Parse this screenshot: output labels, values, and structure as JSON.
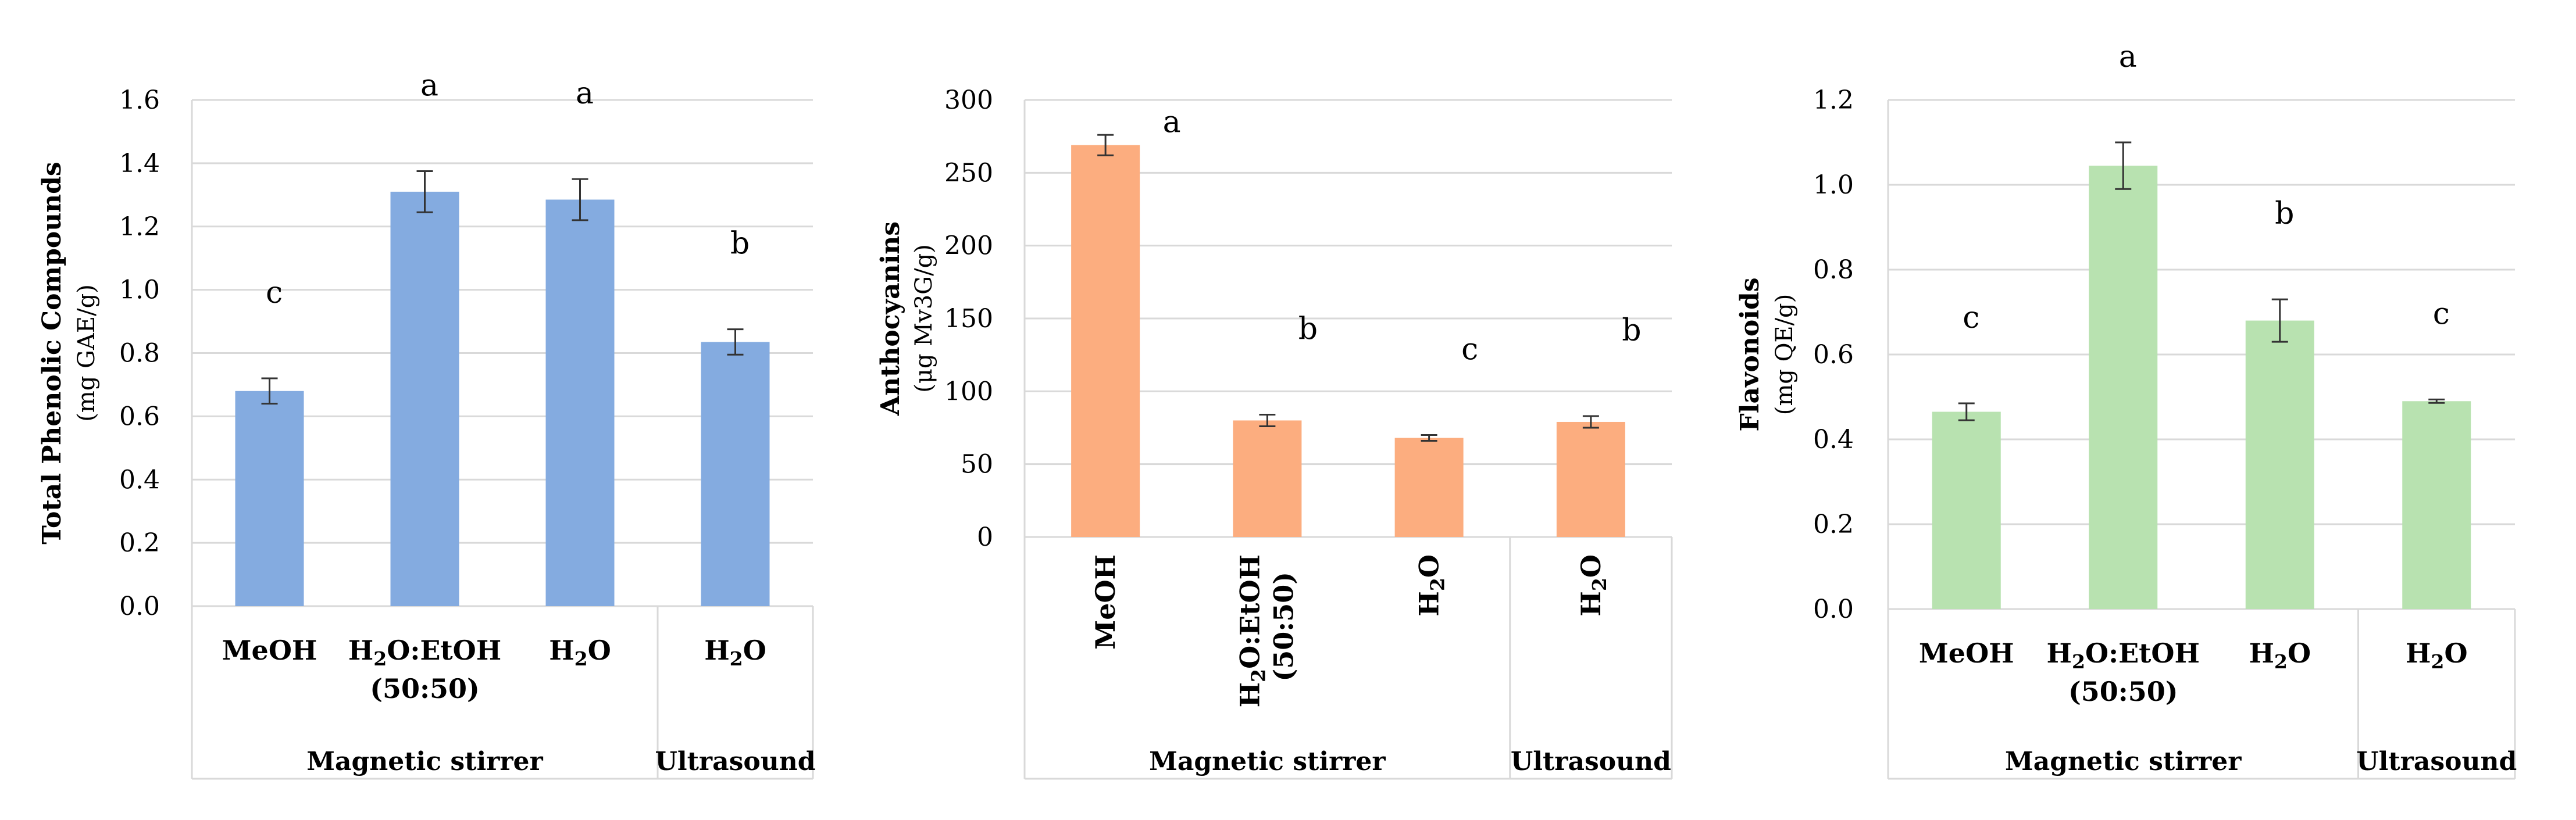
{
  "chart_data": [
    {
      "type": "bar",
      "ylabel": "Total Phenolic Compounds",
      "yunit": "(mg GAE/g)",
      "ylim": [
        0,
        1.6
      ],
      "yticks": [
        "0.0",
        "0.2",
        "0.4",
        "0.6",
        "0.8",
        "1.0",
        "1.2",
        "1.4",
        "1.6"
      ],
      "categories": [
        "MeOH",
        "H₂O:EtOH (50:50)",
        "H₂O",
        "H₂O"
      ],
      "values": [
        0.68,
        1.31,
        1.285,
        0.835
      ],
      "errors": [
        0.04,
        0.065,
        0.065,
        0.04
      ],
      "significance": [
        "c",
        "a",
        "a",
        "b"
      ],
      "groups": [
        {
          "label": "Magnetic stirrer",
          "count": 3
        },
        {
          "label": "Ultrasound",
          "count": 1
        }
      ],
      "bar_color": "#84abe0",
      "grid": true
    },
    {
      "type": "bar",
      "ylabel": "Anthocyanins",
      "yunit": "(μg Mv3G/g)",
      "ylim": [
        0,
        300
      ],
      "yticks": [
        "0",
        "50",
        "100",
        "150",
        "200",
        "250",
        "300"
      ],
      "categories": [
        "MeOH",
        "H₂O:EtOH (50:50)",
        "H₂O",
        "H₂O"
      ],
      "values": [
        269,
        80,
        68,
        79
      ],
      "errors": [
        7,
        4,
        2,
        4
      ],
      "significance": [
        "a",
        "b",
        "c",
        "b"
      ],
      "groups": [
        {
          "label": "Magnetic stirrer",
          "count": 3
        },
        {
          "label": "Ultrasound",
          "count": 1
        }
      ],
      "bar_color": "#fcad7f",
      "grid": true
    },
    {
      "type": "bar",
      "ylabel": "Flavonoids",
      "yunit": "(mg QE/g)",
      "ylim": [
        0,
        1.2
      ],
      "yticks": [
        "0.0",
        "0.2",
        "0.4",
        "0.6",
        "0.8",
        "1.0",
        "1.2"
      ],
      "categories": [
        "MeOH",
        "H₂O:EtOH (50:50)",
        "H₂O",
        "H₂O"
      ],
      "values": [
        0.465,
        1.045,
        0.68,
        0.49
      ],
      "errors": [
        0.02,
        0.055,
        0.05,
        0.004
      ],
      "significance": [
        "c",
        "a",
        "b",
        "c"
      ],
      "groups": [
        {
          "label": "Magnetic stirrer",
          "count": 3
        },
        {
          "label": "Ultrasound",
          "count": 1
        }
      ],
      "bar_color": "#b8e2b0",
      "grid": true
    }
  ]
}
